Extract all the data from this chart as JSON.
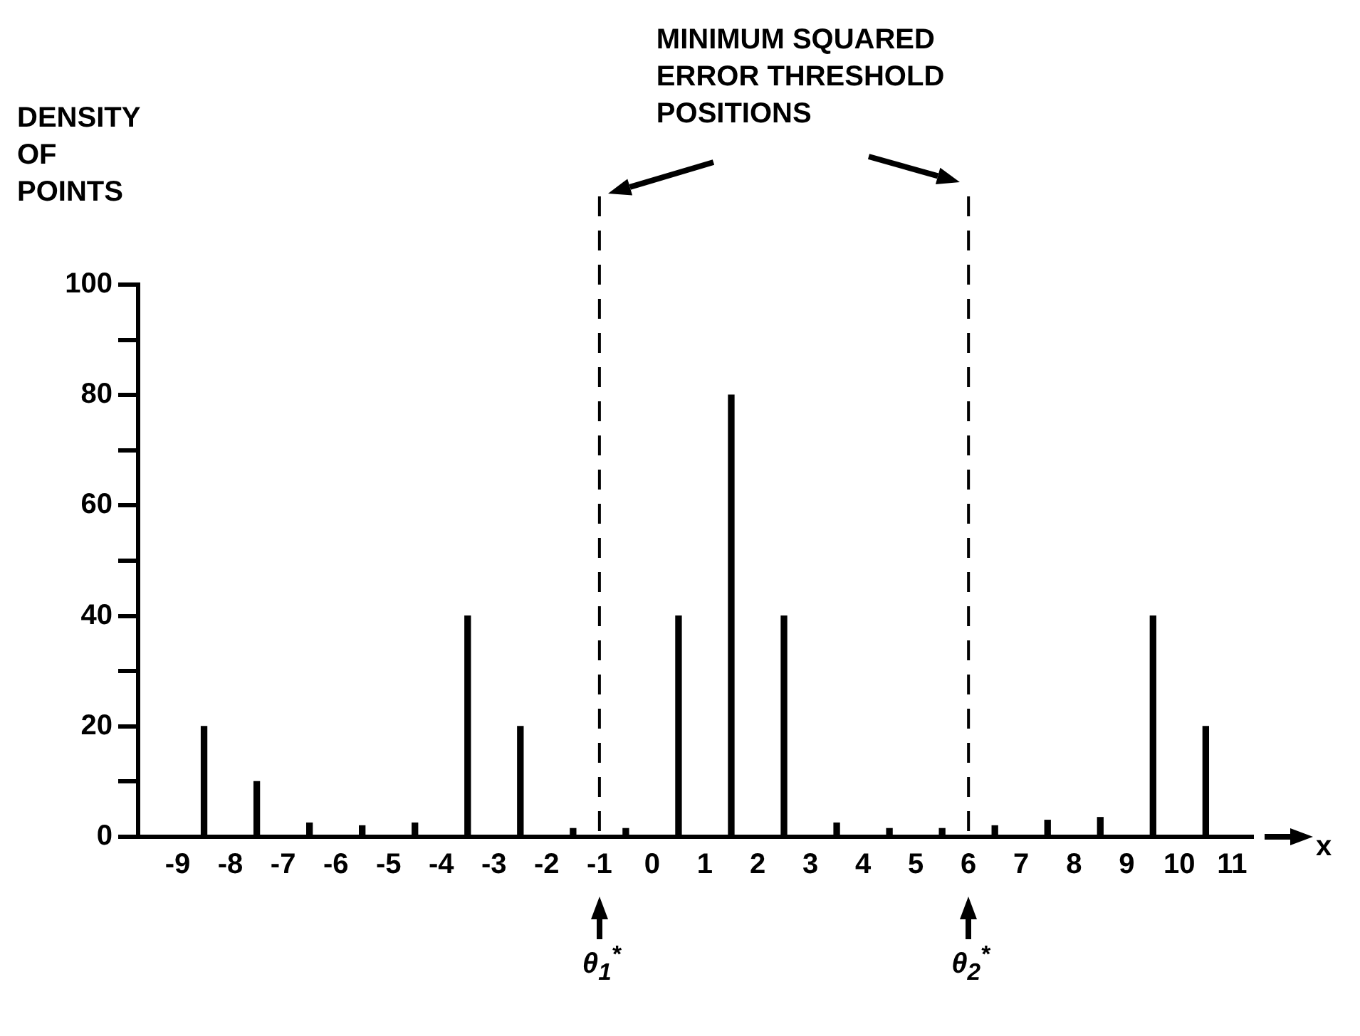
{
  "chart_data": {
    "type": "bar",
    "xlabel": "x",
    "ylabel": "DENSITY OF POINTS",
    "annotations": [
      "MINIMUM SQUARED ERROR THRESHOLD POSITIONS",
      "θ$_{1}$$^{*}$",
      "θ$_{2}$$^{*}$"
    ],
    "x": [
      -8.5,
      -7.5,
      -6.5,
      -5.5,
      -4.5,
      -3.5,
      -2.5,
      -1.5,
      -0.5,
      0.5,
      1.5,
      2.5,
      3.5,
      4.5,
      5.5,
      6.5,
      7.5,
      8.5,
      9.5,
      10.5
    ],
    "values": [
      20,
      10,
      2.5,
      2,
      2.5,
      40,
      20,
      1.5,
      1.5,
      40,
      80,
      40,
      2.5,
      1.5,
      1.5,
      2,
      3,
      3.5,
      40,
      20
    ],
    "color": "#000000",
    "xlim": [
      -9.75,
      11.4
    ],
    "ylim": [
      0,
      100
    ],
    "xticks": [
      -9,
      -8,
      -7,
      -6,
      -5,
      -4,
      -3,
      -2,
      -1,
      0,
      1,
      2,
      3,
      4,
      5,
      6,
      7,
      8,
      9,
      10,
      11
    ],
    "yticks": [
      0,
      {
        "value": 10,
        "label": null
      },
      20,
      {
        "value": 30,
        "label": null
      },
      40,
      {
        "value": 50,
        "label": null
      },
      60,
      {
        "value": 70,
        "label": null
      },
      80,
      {
        "value": 90,
        "label": null
      },
      100
    ],
    "ref_lines": [
      {
        "axis": "x",
        "value": -1,
        "line_style": "dashed"
      },
      {
        "axis": "x",
        "value": 6,
        "line_style": "dashed"
      }
    ]
  }
}
